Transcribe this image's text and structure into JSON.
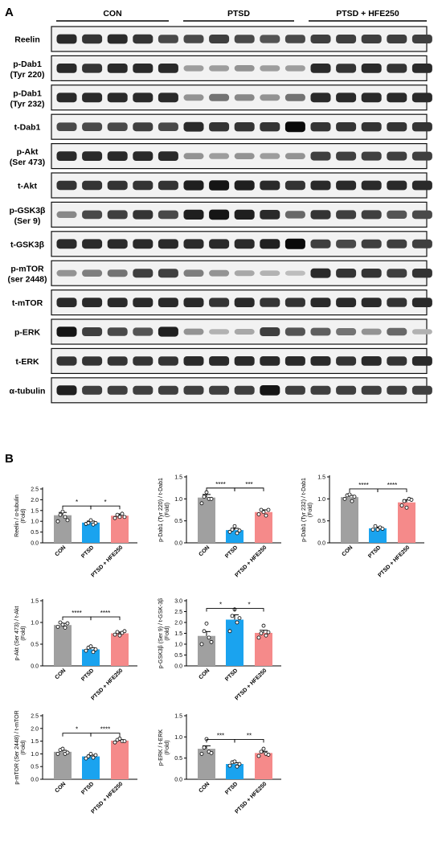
{
  "panel_a": {
    "letter": "A",
    "groups": [
      "CON",
      "PTSD",
      "PTSD + HFE250"
    ],
    "rows": [
      {
        "label": [
          "Reelin"
        ],
        "intensity": [
          0.85,
          0.8,
          0.85,
          0.8,
          0.7,
          0.7,
          0.75,
          0.7,
          0.65,
          0.7,
          0.75,
          0.75,
          0.75,
          0.75,
          0.75
        ]
      },
      {
        "label": [
          "p-Dab1",
          "(Tyr 220)"
        ],
        "intensity": [
          0.85,
          0.8,
          0.85,
          0.85,
          0.85,
          0.3,
          0.3,
          0.35,
          0.3,
          0.3,
          0.85,
          0.8,
          0.85,
          0.8,
          0.85
        ]
      },
      {
        "label": [
          "p-Dab1",
          "(Tyr 232)"
        ],
        "intensity": [
          0.85,
          0.85,
          0.85,
          0.85,
          0.85,
          0.35,
          0.5,
          0.4,
          0.35,
          0.5,
          0.85,
          0.85,
          0.85,
          0.85,
          0.85
        ]
      },
      {
        "label": [
          "t-Dab1"
        ],
        "intensity": [
          0.7,
          0.7,
          0.7,
          0.75,
          0.7,
          0.85,
          0.8,
          0.8,
          0.8,
          1.0,
          0.8,
          0.8,
          0.8,
          0.8,
          0.8
        ]
      },
      {
        "label": [
          "p-Akt",
          "(Ser 473)"
        ],
        "intensity": [
          0.85,
          0.85,
          0.85,
          0.85,
          0.85,
          0.35,
          0.3,
          0.35,
          0.3,
          0.35,
          0.75,
          0.75,
          0.75,
          0.75,
          0.75
        ]
      },
      {
        "label": [
          "t-Akt"
        ],
        "intensity": [
          0.8,
          0.8,
          0.8,
          0.8,
          0.8,
          0.9,
          0.95,
          0.9,
          0.85,
          0.8,
          0.85,
          0.85,
          0.85,
          0.85,
          0.85
        ]
      },
      {
        "label": [
          "p-GSK3β",
          "(Ser 9)"
        ],
        "intensity": [
          0.4,
          0.7,
          0.75,
          0.8,
          0.7,
          0.9,
          0.95,
          0.9,
          0.85,
          0.55,
          0.8,
          0.75,
          0.75,
          0.65,
          0.7
        ]
      },
      {
        "label": [
          "t-GSK3β"
        ],
        "intensity": [
          0.85,
          0.85,
          0.85,
          0.85,
          0.85,
          0.85,
          0.85,
          0.85,
          0.9,
          1.0,
          0.75,
          0.7,
          0.75,
          0.75,
          0.75
        ]
      },
      {
        "label": [
          "p-mTOR",
          "(ser 2448)"
        ],
        "intensity": [
          0.35,
          0.45,
          0.5,
          0.75,
          0.75,
          0.45,
          0.35,
          0.25,
          0.2,
          0.15,
          0.85,
          0.8,
          0.8,
          0.75,
          0.8
        ]
      },
      {
        "label": [
          "t-mTOR"
        ],
        "intensity": [
          0.85,
          0.85,
          0.85,
          0.85,
          0.85,
          0.85,
          0.8,
          0.85,
          0.8,
          0.8,
          0.85,
          0.85,
          0.85,
          0.8,
          0.85
        ]
      },
      {
        "label": [
          "p-ERK"
        ],
        "intensity": [
          0.95,
          0.75,
          0.7,
          0.65,
          0.9,
          0.35,
          0.2,
          0.25,
          0.75,
          0.65,
          0.6,
          0.5,
          0.35,
          0.55,
          0.2
        ]
      },
      {
        "label": [
          "t-ERK"
        ],
        "intensity": [
          0.8,
          0.8,
          0.8,
          0.8,
          0.8,
          0.85,
          0.85,
          0.85,
          0.85,
          0.85,
          0.85,
          0.8,
          0.85,
          0.8,
          0.85
        ]
      },
      {
        "label": [
          "α-tubulin"
        ],
        "intensity": [
          0.9,
          0.75,
          0.75,
          0.75,
          0.75,
          0.75,
          0.75,
          0.75,
          0.95,
          0.75,
          0.75,
          0.75,
          0.75,
          0.75,
          0.75
        ]
      }
    ]
  },
  "panel_b": {
    "letter": "B"
  },
  "colors": {
    "con": "#a0a0a0",
    "ptsd": "#1aa3ef",
    "hfe": "#f58a8a"
  },
  "chart_data": [
    {
      "type": "bar",
      "categories": [
        "CON",
        "PTSD",
        "PTSD + HFE250"
      ],
      "values": [
        1.28,
        0.94,
        1.26
      ],
      "errors": [
        0.13,
        0.07,
        0.08
      ],
      "points": [
        [
          1.0,
          1.3,
          1.45,
          1.2,
          1.05
        ],
        [
          0.88,
          0.92,
          1.05,
          0.85,
          0.92
        ],
        [
          1.15,
          1.3,
          1.2,
          1.35,
          1.2
        ]
      ],
      "ylabel": [
        "Reelin / α-tubulin",
        "(Fold)"
      ],
      "ylim": [
        0,
        2.5
      ],
      "ticks": [
        "0.0",
        "0.5",
        "1.0",
        "1.5",
        "2.0",
        "2.5"
      ],
      "sig": [
        "*",
        "*"
      ]
    },
    {
      "type": "bar",
      "categories": [
        "CON",
        "PTSD",
        "PTSD + HFE250"
      ],
      "values": [
        1.03,
        0.29,
        0.7
      ],
      "errors": [
        0.07,
        0.04,
        0.05
      ],
      "points": [
        [
          0.9,
          1.05,
          1.15,
          1.0,
          1.0
        ],
        [
          0.25,
          0.3,
          0.38,
          0.22,
          0.28
        ],
        [
          0.65,
          0.75,
          0.7,
          0.62,
          0.75
        ]
      ],
      "ylabel": [
        "p-Dab1 (Tyr 220) / t-Dab1",
        "(Fold)"
      ],
      "ylim": [
        0,
        1.5
      ],
      "ticks": [
        "0.0",
        "0.5",
        "1.0",
        "1.5"
      ],
      "sig": [
        "****",
        "***"
      ]
    },
    {
      "type": "bar",
      "categories": [
        "CON",
        "PTSD",
        "PTSD + HFE250"
      ],
      "values": [
        1.04,
        0.33,
        0.92
      ],
      "errors": [
        0.04,
        0.03,
        0.06
      ],
      "points": [
        [
          1.0,
          1.08,
          1.1,
          0.95,
          1.05
        ],
        [
          0.3,
          0.38,
          0.3,
          0.35,
          0.32
        ],
        [
          0.85,
          0.95,
          0.8,
          1.0,
          0.98
        ]
      ],
      "ylabel": [
        "p-Dab1 (Tyr 232) / t-Dab1",
        "(Fold)"
      ],
      "ylim": [
        0,
        1.5
      ],
      "ticks": [
        "0.0",
        "0.5",
        "1.0",
        "1.5"
      ],
      "sig": [
        "****",
        "****"
      ]
    },
    {
      "type": "bar",
      "categories": [
        "CON",
        "PTSD",
        "PTSD + HFE250"
      ],
      "values": [
        0.94,
        0.38,
        0.75
      ],
      "errors": [
        0.04,
        0.04,
        0.03
      ],
      "points": [
        [
          0.9,
          1.0,
          0.95,
          0.88,
          0.98
        ],
        [
          0.35,
          0.42,
          0.45,
          0.32,
          0.38
        ],
        [
          0.72,
          0.78,
          0.7,
          0.76,
          0.8
        ]
      ],
      "ylabel": [
        "p-Akt (Ser 473) / t-Akt",
        "(Fold)"
      ],
      "ylim": [
        0,
        1.5
      ],
      "ticks": [
        "0.0",
        "0.5",
        "1.0",
        "1.5"
      ],
      "sig": [
        "****",
        "****"
      ]
    },
    {
      "type": "bar",
      "categories": [
        "CON",
        "PTSD",
        "PTSD + HFE250"
      ],
      "values": [
        1.38,
        2.13,
        1.52
      ],
      "errors": [
        0.2,
        0.22,
        0.12
      ],
      "points": [
        [
          1.0,
          1.6,
          1.95,
          1.3,
          1.1
        ],
        [
          1.6,
          2.3,
          2.6,
          2.0,
          2.2
        ],
        [
          1.3,
          1.5,
          1.85,
          1.4,
          1.55
        ]
      ],
      "ylabel": [
        "p-GSK3β (Ser 9) / t-GSK-3β",
        "(Fold)"
      ],
      "ylim": [
        0,
        3.0
      ],
      "ticks": [
        "0.0",
        "0.5",
        "1.0",
        "1.5",
        "2.0",
        "2.5",
        "3.0"
      ],
      "sig": [
        "*",
        "*"
      ]
    },
    {
      "type": "bar",
      "categories": [
        "CON",
        "PTSD",
        "PTSD + HFE250"
      ],
      "values": [
        1.08,
        0.9,
        1.52
      ],
      "errors": [
        0.06,
        0.05,
        0.04
      ],
      "points": [
        [
          1.0,
          1.15,
          1.2,
          1.0,
          1.05
        ],
        [
          0.82,
          0.9,
          1.0,
          0.85,
          0.95
        ],
        [
          1.45,
          1.55,
          1.6,
          1.5,
          1.5
        ]
      ],
      "ylabel": [
        "p-mTOR (Ser 2448) / t-mTOR",
        "(Fold)"
      ],
      "ylim": [
        0,
        2.5
      ],
      "ticks": [
        "0.0",
        "0.5",
        "1.0",
        "1.5",
        "2.0",
        "2.5"
      ],
      "sig": [
        "*",
        "****"
      ]
    },
    {
      "type": "bar",
      "categories": [
        "CON",
        "PTSD",
        "PTSD + HFE250"
      ],
      "values": [
        0.72,
        0.36,
        0.62
      ],
      "errors": [
        0.07,
        0.03,
        0.04
      ],
      "points": [
        [
          0.6,
          0.75,
          0.95,
          0.65,
          0.62
        ],
        [
          0.32,
          0.4,
          0.42,
          0.3,
          0.36
        ],
        [
          0.55,
          0.65,
          0.72,
          0.6,
          0.58
        ]
      ],
      "ylabel": [
        "p-ERK / t-ERK",
        "(Fold)"
      ],
      "ylim": [
        0,
        1.5
      ],
      "ticks": [
        "0.0",
        "0.5",
        "1.0",
        "1.5"
      ],
      "sig": [
        "***",
        "**"
      ]
    }
  ]
}
